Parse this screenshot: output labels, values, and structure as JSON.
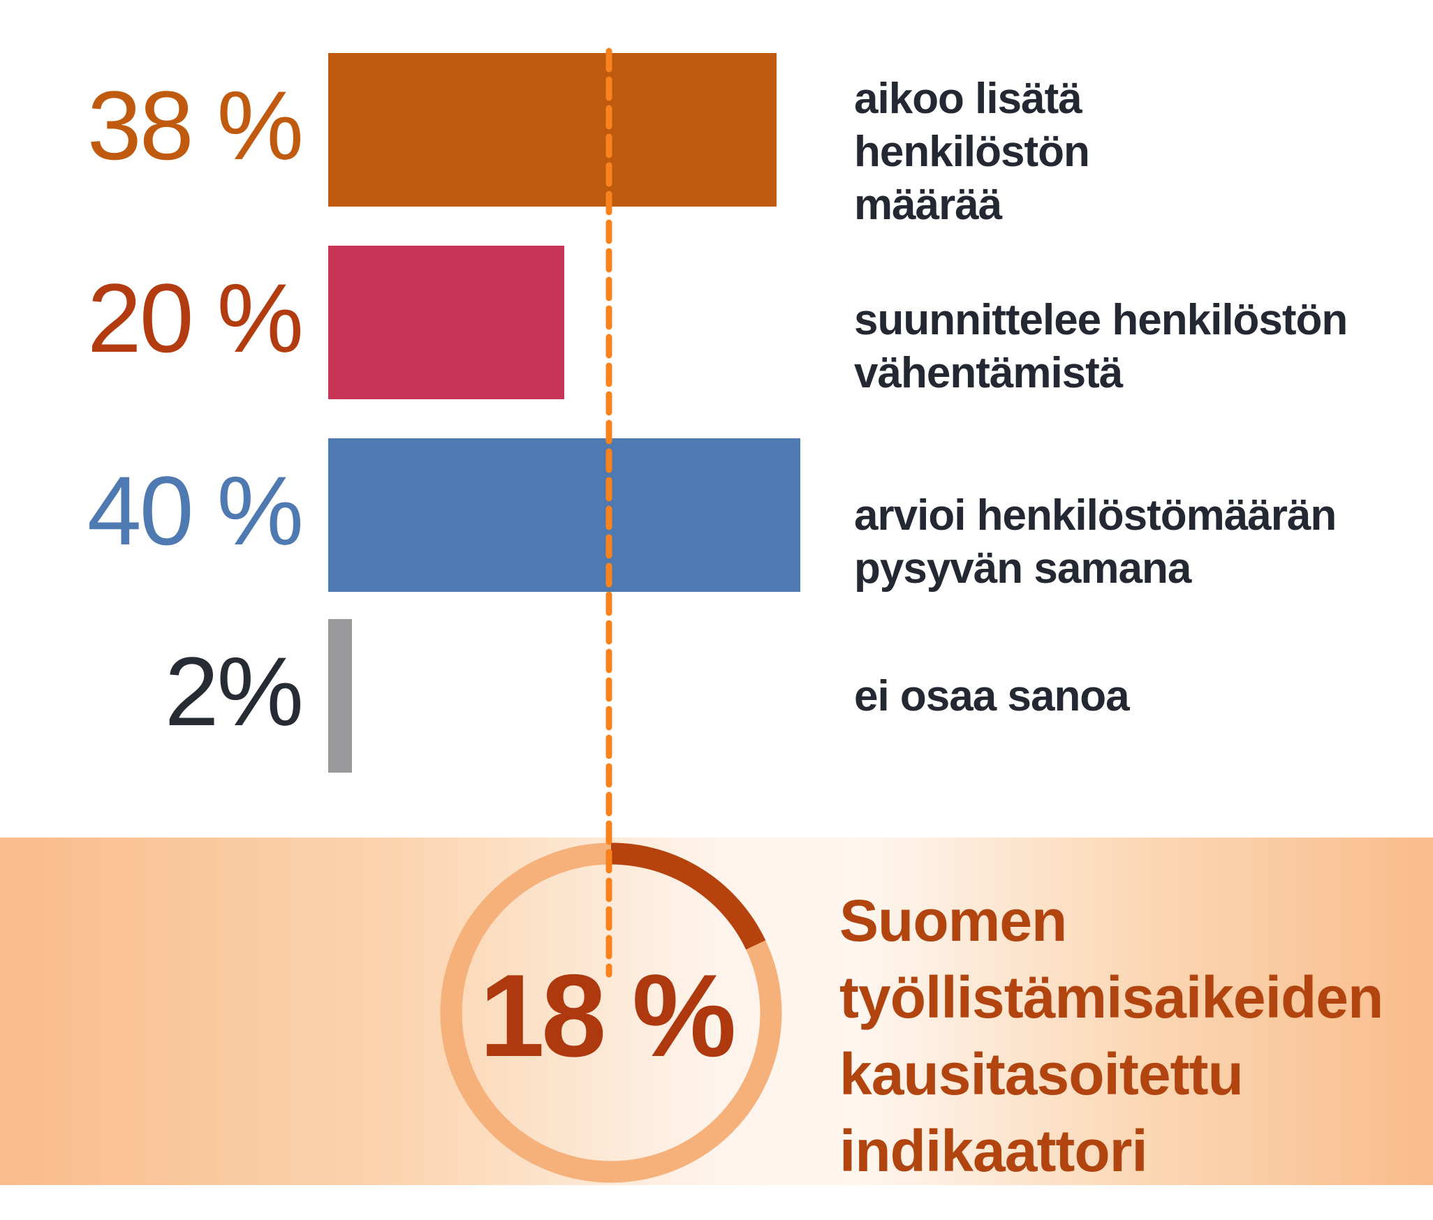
{
  "chart_data": {
    "type": "bar",
    "orientation": "horizontal",
    "unit": "%",
    "grid": false,
    "legend": false,
    "categories": [
      "aikoo lisätä henkilöstön määrää",
      "suunnittelee henkilöstön vähentämistä",
      "arvioi henkilöstömäärän pysyvän samana",
      "ei osaa sanoa"
    ],
    "values": [
      38,
      20,
      40,
      2
    ],
    "xlim": [
      0,
      95
    ],
    "rows": [
      {
        "value": 38,
        "value_label": "38 %",
        "value_color": "#C05A0E",
        "bar_color": "#C05A0E",
        "label_lines": [
          "aikoo lisätä",
          "henkilöstön",
          "määrää"
        ]
      },
      {
        "value": 20,
        "value_label": "20 %",
        "value_color": "#B23B10",
        "bar_color": "#C93356",
        "label_lines": [
          "suunnittelee henkilöstön",
          "vähentämistä"
        ]
      },
      {
        "value": 40,
        "value_label": "40 %",
        "value_color": "#4E79B1",
        "bar_color": "#4E79B1",
        "label_lines": [
          "arvioi henkilöstömäärän",
          "pysyvän samana"
        ]
      },
      {
        "value": 2,
        "value_label": "2%",
        "value_color": "#262B34",
        "bar_color": "#9A9A9D",
        "label_lines": [
          "ei osaa sanoa"
        ]
      }
    ],
    "reference_line": {
      "style": "dashed",
      "color": "#F8821E",
      "x_percent": 23.8,
      "aligned_with": "indicator-donut-center"
    }
  },
  "indicator": {
    "value": 18,
    "value_label": "18 %",
    "value_color": "#AE390F",
    "title_lines": [
      "Suomen",
      "työllistämisaikeiden",
      "kausitasoitettu",
      "indikaattori"
    ],
    "title_color": "#B2450F",
    "donut_track_color": "#F6B07A",
    "donut_arc_color": "#B6430E",
    "band_edge_color": "#F9BC8C",
    "band_center_color": "#FEF4EC"
  }
}
